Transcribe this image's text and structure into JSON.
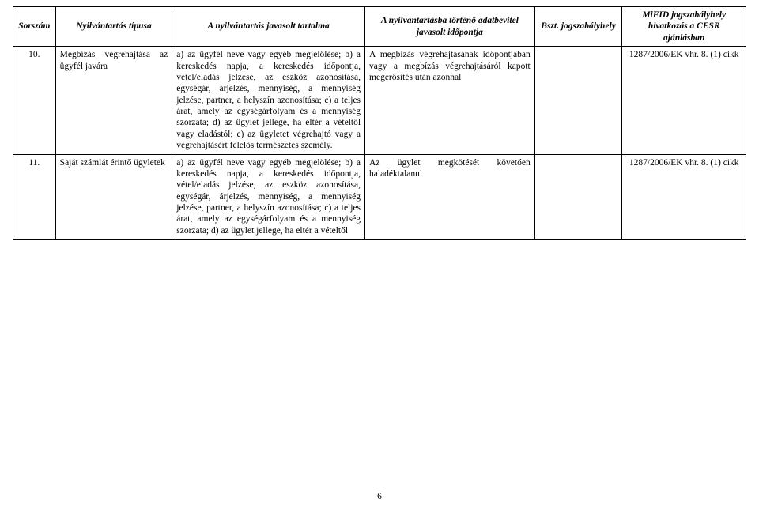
{
  "page_number": "6",
  "columns": {
    "num": "Sorszám",
    "type": "Nyilvántartás típusa",
    "cont": "A nyilvántartás javasolt tartalma",
    "time": "A nyilvántartásba történő adatbevitel javasolt időpontja",
    "bszt": "Bszt. jogszabályhely",
    "mifid": "MiFID jogszabályhely hivatkozás a CESR ajánlásban"
  },
  "rows": [
    {
      "num": "10.",
      "type": "Megbízás végrehajtása az ügyfél javára",
      "cont": "a) az ügyfél neve vagy egyéb megjelölése;\nb) a kereskedés napja, a kereskedés időpontja, vétel/eladás jelzése, az eszköz azonosítása, egységár, árjelzés, mennyiség, a mennyiség jelzése, partner, a helyszín azonosítása;\nc) a teljes árat, amely az egységárfolyam és a mennyiség\nszorzata;\nd) az ügylet jellege, ha eltér a vételtől vagy eladástól;\ne) az ügyletet végrehajtó vagy a végrehajtásért felelős természetes\nszemély.",
      "time": "A megbízás végrehajtásának időpontjában vagy a megbízás végrehajtásáról kapott megerősítés után azonnal",
      "bszt": "",
      "mifid": "1287/2006/EK vhr. 8. (1) cikk"
    },
    {
      "num": "11.",
      "type": "Saját számlát érintő ügyletek",
      "cont": "a) az ügyfél neve vagy egyéb megjelölése;\nb) a kereskedés napja, a kereskedés időpontja, vétel/eladás jelzése, az eszköz azonosítása, egységár, árjelzés, mennyiség, a mennyiség jelzése, partner, a helyszín azonosítása;\nc) a teljes árat, amely az egységárfolyam és a mennyiség\nszorzata;\nd) az ügylet jellege, ha eltér a vételtől",
      "time": "Az ügylet megkötését követően haladéktalanul",
      "bszt": "",
      "mifid": "1287/2006/EK vhr. 8. (1) cikk"
    }
  ]
}
